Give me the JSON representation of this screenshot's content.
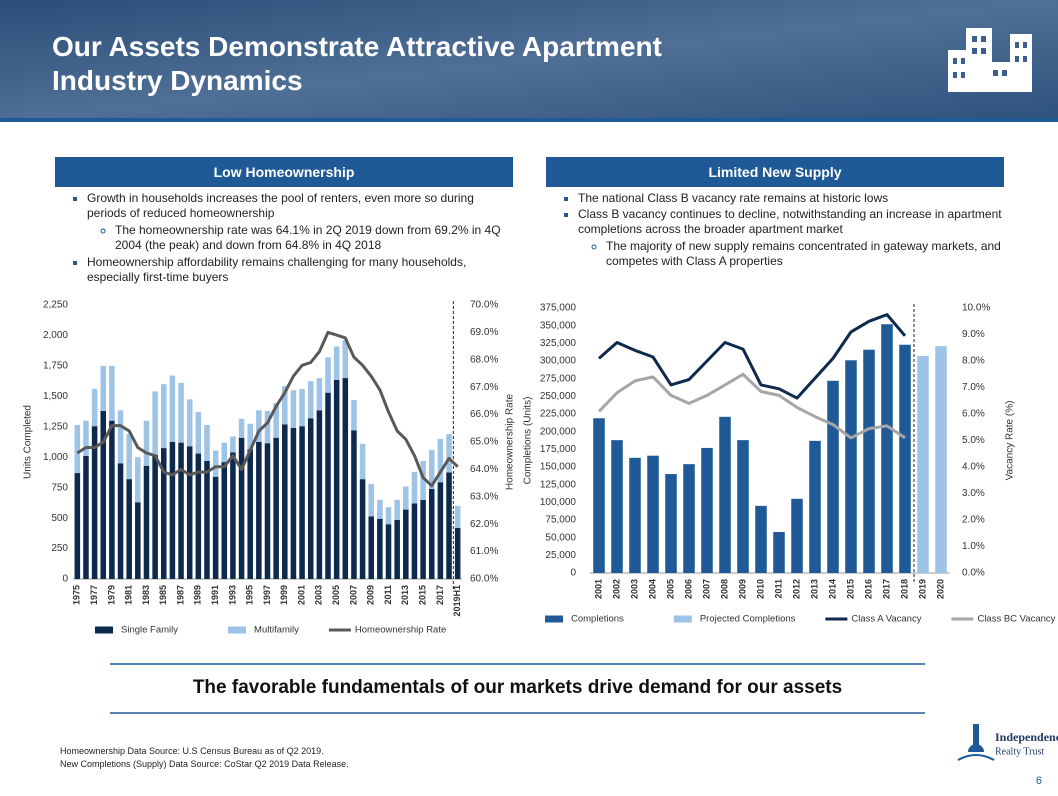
{
  "header": {
    "title": "Our Assets Demonstrate Attractive Apartment Industry Dynamics"
  },
  "sections": [
    {
      "heading": "Low Homeownership",
      "bullets": [
        {
          "text": "Growth in households increases the pool of renters, even more so during periods of reduced homeownership",
          "sub": [
            "The homeownership rate was 64.1% in 2Q 2019 down from 69.2% in 4Q 2004 (the peak) and down from 64.8% in 4Q 2018"
          ]
        },
        {
          "text": "Homeownership affordability remains challenging for many households, especially first-time buyers",
          "sub": []
        }
      ]
    },
    {
      "heading": "Limited New Supply",
      "bullets": [
        {
          "text": "The national Class B vacancy rate remains at historic lows",
          "sub": []
        },
        {
          "text": "Class B vacancy continues to decline, notwithstanding an increase in apartment completions across the broader apartment market",
          "sub": [
            "The majority of new supply remains concentrated in gateway markets, and competes with Class A properties"
          ]
        }
      ]
    }
  ],
  "chart_data": [
    {
      "type": "combo",
      "stacked": true,
      "grid": false,
      "y_label": "Units Completed",
      "y2_label": "Homeownership Rate",
      "categories": [
        "1975",
        null,
        "1977",
        null,
        "1979",
        null,
        "1981",
        null,
        "1983",
        null,
        "1985",
        null,
        "1987",
        null,
        "1989",
        null,
        "1991",
        null,
        "1993",
        null,
        "1995",
        null,
        "1997",
        null,
        "1999",
        null,
        "2001",
        null,
        "2003",
        null,
        "2005",
        null,
        "2007",
        null,
        "2009",
        null,
        "2011",
        null,
        "2013",
        null,
        "2015",
        null,
        "2017",
        null,
        "2019H1"
      ],
      "ylim": [
        0,
        2250
      ],
      "yticks": [
        0,
        250,
        500,
        750,
        {
          "value": 1000,
          "label": "1,000"
        },
        {
          "value": 1250,
          "label": "1,250"
        },
        {
          "value": 1500,
          "label": "1,500"
        },
        {
          "value": 1750,
          "label": "1,750"
        },
        {
          "value": 2000,
          "label": "2,000"
        },
        {
          "value": 2250,
          "label": "2,250"
        }
      ],
      "y2lim": [
        60,
        70
      ],
      "y2ticks": [
        {
          "value": 60,
          "label": "60.0%"
        },
        {
          "value": 61,
          "label": "61.0%"
        },
        {
          "value": 62,
          "label": "62.0%"
        },
        {
          "value": 63,
          "label": "63.0%"
        },
        {
          "value": 64,
          "label": "64.0%"
        },
        {
          "value": 65,
          "label": "65.0%"
        },
        {
          "value": 66,
          "label": "66.0%"
        },
        {
          "value": 67,
          "label": "67.0%"
        },
        {
          "value": 68,
          "label": "68.0%"
        },
        {
          "value": 69,
          "label": "69.0%"
        },
        {
          "value": 70,
          "label": "70.0%"
        }
      ],
      "series": [
        {
          "name": "Single Family",
          "type": "bar",
          "color": "#0d2a4e",
          "values": [
            870,
            1010,
            1255,
            1380,
            1300,
            950,
            820,
            630,
            930,
            1020,
            1075,
            1125,
            1120,
            1090,
            1030,
            970,
            840,
            960,
            1040,
            1160,
            1065,
            1125,
            1115,
            1160,
            1270,
            1240,
            1255,
            1320,
            1385,
            1530,
            1635,
            1650,
            1220,
            820,
            515,
            495,
            450,
            485,
            570,
            620,
            650,
            740,
            795,
            875,
            420
          ]
        },
        {
          "name": "Multifamily",
          "type": "bar",
          "color": "#9dc3e6",
          "values": [
            395,
            290,
            305,
            370,
            450,
            435,
            370,
            370,
            370,
            520,
            525,
            545,
            490,
            385,
            340,
            295,
            215,
            160,
            130,
            155,
            210,
            260,
            265,
            285,
            315,
            310,
            305,
            305,
            265,
            290,
            275,
            310,
            250,
            290,
            265,
            155,
            140,
            165,
            190,
            260,
            320,
            320,
            355,
            315,
            180
          ]
        },
        {
          "name": "Homeownership Rate",
          "type": "line",
          "axis": "y2",
          "color": "#595959",
          "values": [
            64.6,
            64.8,
            64.8,
            65.0,
            65.6,
            65.6,
            65.4,
            64.8,
            64.6,
            64.5,
            63.9,
            63.8,
            64.0,
            63.8,
            63.9,
            63.9,
            64.1,
            64.1,
            64.5,
            64.0,
            64.7,
            65.4,
            65.7,
            66.3,
            66.8,
            67.4,
            67.8,
            67.9,
            68.3,
            69.0,
            68.9,
            68.8,
            68.1,
            67.8,
            67.4,
            66.9,
            66.1,
            65.4,
            65.1,
            64.5,
            63.7,
            63.4,
            63.9,
            64.4,
            64.1
          ]
        }
      ]
    },
    {
      "type": "combo",
      "stacked": true,
      "grid": false,
      "y_label": "Completions (Units)",
      "y2_label": "Vacancy Rate (%)",
      "categories": [
        "2001",
        "2002",
        "2003",
        "2004",
        "2005",
        "2006",
        "2007",
        "2008",
        "2009",
        "2010",
        "2011",
        "2012",
        "2013",
        "2014",
        "2015",
        "2016",
        "2017",
        "2018",
        "2019",
        "2020"
      ],
      "ylim": [
        0,
        375000
      ],
      "yticks": [
        0,
        {
          "value": 25000,
          "label": "25,000"
        },
        {
          "value": 50000,
          "label": "50,000"
        },
        {
          "value": 75000,
          "label": "75,000"
        },
        {
          "value": 100000,
          "label": "100,000"
        },
        {
          "value": 125000,
          "label": "125,000"
        },
        {
          "value": 150000,
          "label": "150,000"
        },
        {
          "value": 175000,
          "label": "175,000"
        },
        {
          "value": 200000,
          "label": "200,000"
        },
        {
          "value": 225000,
          "label": "225,000"
        },
        {
          "value": 250000,
          "label": "250,000"
        },
        {
          "value": 275000,
          "label": "275,000"
        },
        {
          "value": 300000,
          "label": "300,000"
        },
        {
          "value": 325000,
          "label": "325,000"
        },
        {
          "value": 350000,
          "label": "350,000"
        },
        {
          "value": 375000,
          "label": "375,000"
        }
      ],
      "y2lim": [
        0,
        10
      ],
      "y2ticks": [
        {
          "value": 0,
          "label": "0.0%"
        },
        {
          "value": 1,
          "label": "1.0%"
        },
        {
          "value": 2,
          "label": "2.0%"
        },
        {
          "value": 3,
          "label": "3.0%"
        },
        {
          "value": 4,
          "label": "4.0%"
        },
        {
          "value": 5,
          "label": "5.0%"
        },
        {
          "value": 6,
          "label": "6.0%"
        },
        {
          "value": 7,
          "label": "7.0%"
        },
        {
          "value": 8,
          "label": "8.0%"
        },
        {
          "value": 9,
          "label": "9.0%"
        },
        {
          "value": 10,
          "label": "10.0%"
        }
      ],
      "series": [
        {
          "name": "Completions",
          "type": "bar",
          "color": "#1f5a96",
          "values": [
            219000,
            188000,
            163000,
            166000,
            140000,
            154000,
            177000,
            221000,
            188000,
            95000,
            58000,
            105000,
            187000,
            272000,
            301000,
            316000,
            352000,
            323000,
            null,
            null
          ]
        },
        {
          "name": "Projected Completions",
          "type": "bar",
          "color": "#9dc3e6",
          "values": [
            null,
            null,
            null,
            null,
            null,
            null,
            null,
            null,
            null,
            null,
            null,
            null,
            null,
            null,
            null,
            null,
            null,
            null,
            307000,
            321000
          ]
        },
        {
          "name": "Class A Vacancy",
          "type": "line",
          "axis": "y2",
          "color": "#0d2a4e",
          "values": [
            8.1,
            8.7,
            8.4,
            8.15,
            7.1,
            7.3,
            8.0,
            8.7,
            8.45,
            7.1,
            6.95,
            6.6,
            7.35,
            8.1,
            9.1,
            9.5,
            9.75,
            8.95,
            null,
            null
          ]
        },
        {
          "name": "Class BC Vacancy",
          "type": "line",
          "axis": "y2",
          "color": "#a6a6a6",
          "values": [
            6.1,
            6.8,
            7.25,
            7.4,
            6.7,
            6.4,
            6.7,
            7.1,
            7.5,
            6.85,
            6.7,
            6.25,
            5.9,
            5.6,
            5.1,
            5.45,
            5.55,
            5.1,
            null,
            null
          ]
        }
      ]
    }
  ],
  "tagline": "The favorable fundamentals of our markets drive demand for our assets",
  "footer": {
    "sources": [
      "Homeownership Data Source: U.S Census Bureau as of Q2 2019.",
      "New Completions (Supply) Data Source: CoStar Q2 2019 Data Release."
    ],
    "page_number": "6"
  },
  "logo": {
    "name": "Independence",
    "sub": "Realty Trust"
  }
}
